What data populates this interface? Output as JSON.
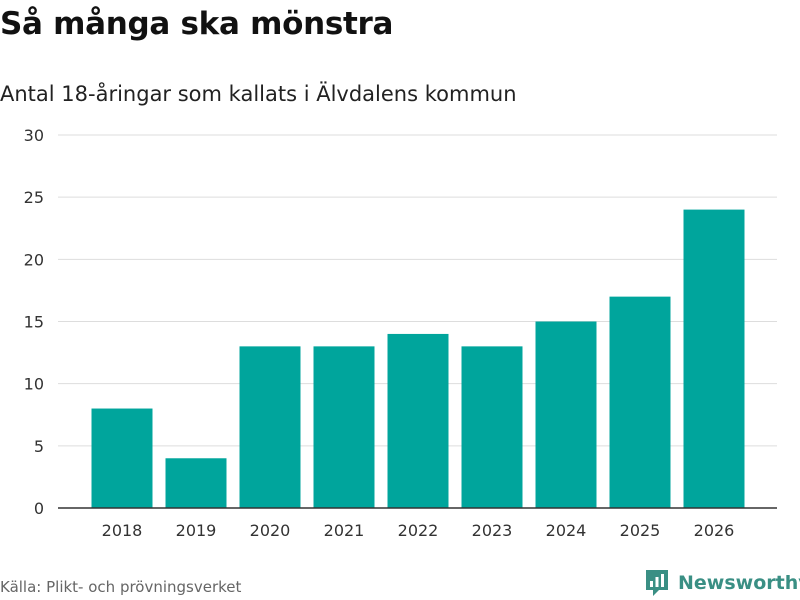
{
  "header": {
    "title": "Så många ska mönstra",
    "subtitle": "Antal 18-åringar som kallats i Älvdalens kommun"
  },
  "footer": {
    "source": "Källa: Plikt- och prövningsverket",
    "brand": "Newsworthy"
  },
  "colors": {
    "bar": "#00a59c",
    "grid": "#dddddd",
    "axis": "#333333",
    "brand": "#3a8f84"
  },
  "icons": {
    "logo": "newsworthy-logo-icon"
  },
  "chart_data": {
    "type": "bar",
    "title": "Så många ska mönstra",
    "subtitle": "Antal 18-åringar som kallats i Älvdalens kommun",
    "categories": [
      "2018",
      "2019",
      "2020",
      "2021",
      "2022",
      "2023",
      "2024",
      "2025",
      "2026"
    ],
    "values": [
      8,
      4,
      13,
      13,
      14,
      13,
      15,
      17,
      24
    ],
    "xlabel": "",
    "ylabel": "",
    "ylim": [
      0,
      30
    ],
    "yticks": [
      0,
      5,
      10,
      15,
      20,
      25,
      30
    ],
    "grid": true,
    "legend": "none"
  }
}
